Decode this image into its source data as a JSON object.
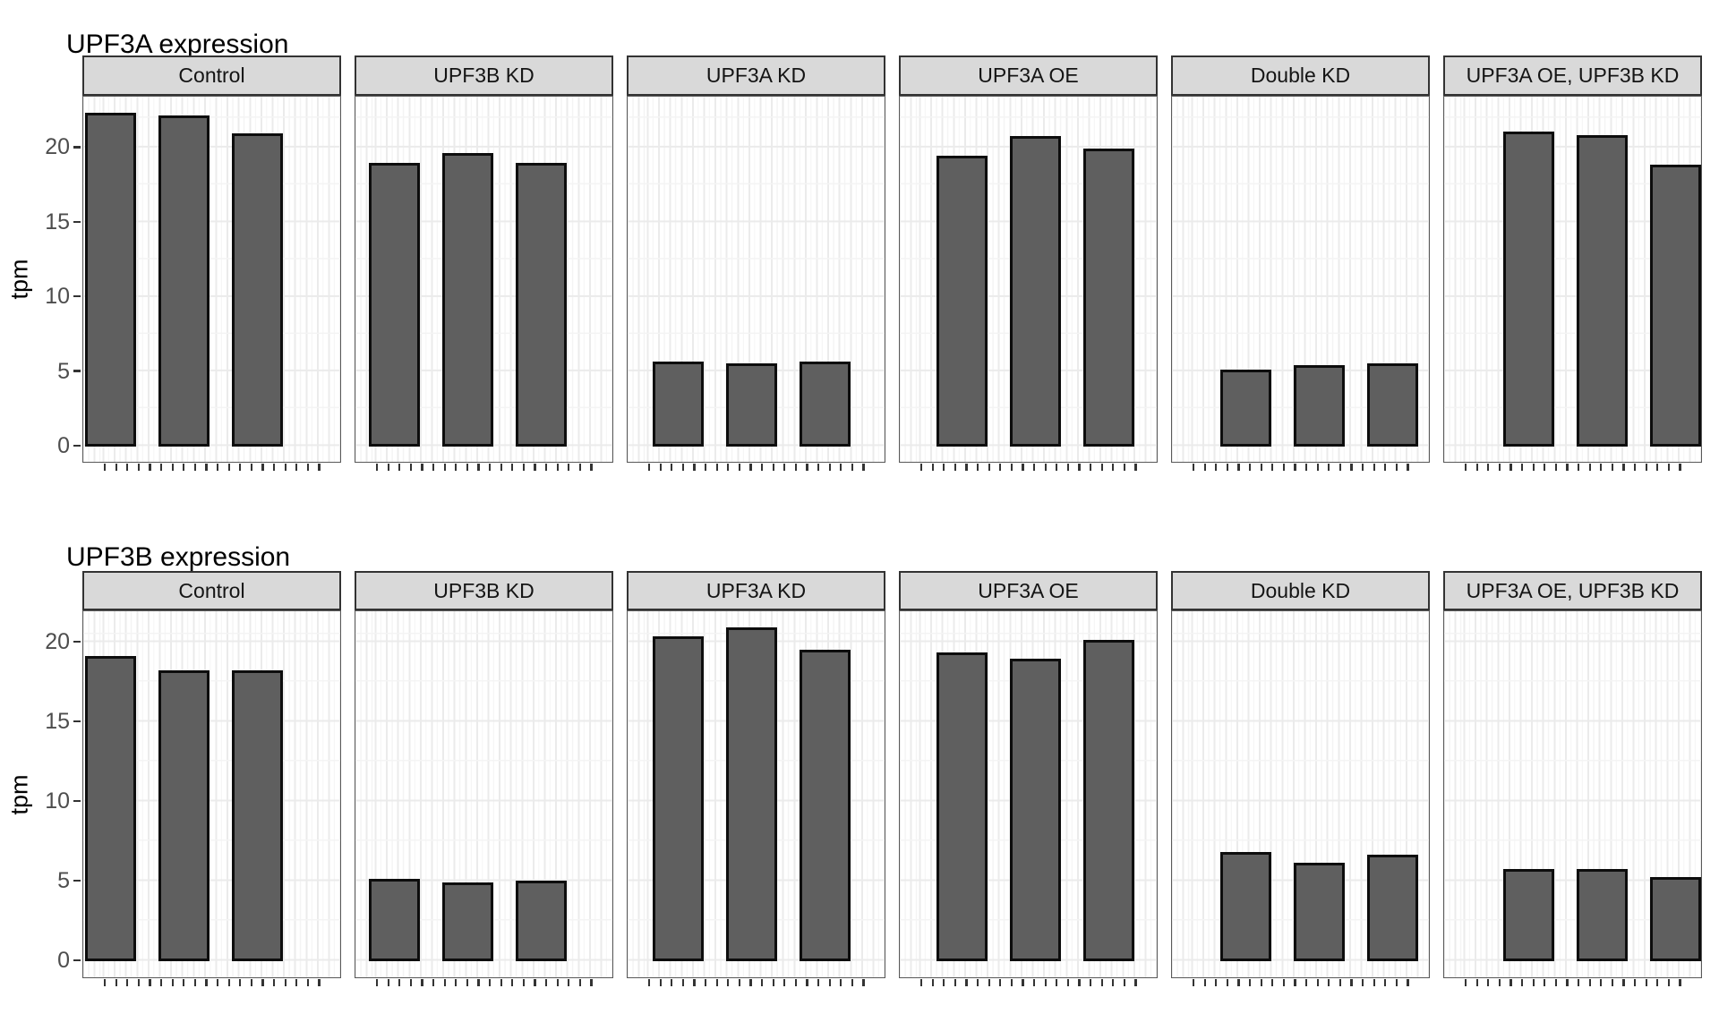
{
  "figure": {
    "background": "#ffffff",
    "charts_count": 2
  },
  "chart_data": [
    {
      "type": "bar",
      "title": "UPF3A expression",
      "xlabel": "",
      "ylabel": "tpm",
      "yticks": [
        20,
        15,
        10,
        5,
        0
      ],
      "ylim": [
        0,
        23.4
      ],
      "grid": true,
      "legend": "none",
      "faceted": true,
      "bars_per_facet": 3,
      "facets": [
        "Control",
        "UPF3B KD",
        "UPF3A KD",
        "UPF3A OE",
        "Double KD",
        "UPF3A OE, UPF3B KD"
      ],
      "series": [
        {
          "facet": "Control",
          "values": [
            22.2,
            22.0,
            20.8
          ]
        },
        {
          "facet": "UPF3B KD",
          "values": [
            18.8,
            19.5,
            18.8
          ]
        },
        {
          "facet": "UPF3A KD",
          "values": [
            5.5,
            5.4,
            5.5
          ]
        },
        {
          "facet": "UPF3A OE",
          "values": [
            19.3,
            20.6,
            19.8
          ]
        },
        {
          "facet": "Double KD",
          "values": [
            5.0,
            5.3,
            5.4
          ]
        },
        {
          "facet": "UPF3A OE, UPF3B KD",
          "values": [
            20.9,
            20.7,
            18.7
          ]
        }
      ]
    },
    {
      "type": "bar",
      "title": "UPF3B expression",
      "xlabel": "",
      "ylabel": "tpm",
      "yticks": [
        20,
        15,
        10,
        5,
        0
      ],
      "ylim": [
        0,
        22.0
      ],
      "grid": true,
      "legend": "none",
      "faceted": true,
      "bars_per_facet": 3,
      "facets": [
        "Control",
        "UPF3B KD",
        "UPF3A KD",
        "UPF3A OE",
        "Double KD",
        "UPF3A OE, UPF3B KD"
      ],
      "series": [
        {
          "facet": "Control",
          "values": [
            19.0,
            18.1,
            18.1
          ]
        },
        {
          "facet": "UPF3B KD",
          "values": [
            5.0,
            4.8,
            4.9
          ]
        },
        {
          "facet": "UPF3A KD",
          "values": [
            20.2,
            20.8,
            19.4
          ]
        },
        {
          "facet": "UPF3A OE",
          "values": [
            19.2,
            18.8,
            20.0
          ]
        },
        {
          "facet": "Double KD",
          "values": [
            6.7,
            6.0,
            6.5
          ]
        },
        {
          "facet": "UPF3A OE, UPF3B KD",
          "values": [
            5.6,
            5.6,
            5.1
          ]
        }
      ]
    }
  ],
  "colors": {
    "bar_fill": "#5f5f5f",
    "bar_outline": "#0d0d0d",
    "strip_bg": "#d9d9d9",
    "strip_border": "#333333",
    "panel_border": "#595959",
    "grid_major": "#ebebeb",
    "grid_minor": "#f4f4f4",
    "tick_label": "#4d4d4d",
    "axis_tick": "#333333"
  }
}
